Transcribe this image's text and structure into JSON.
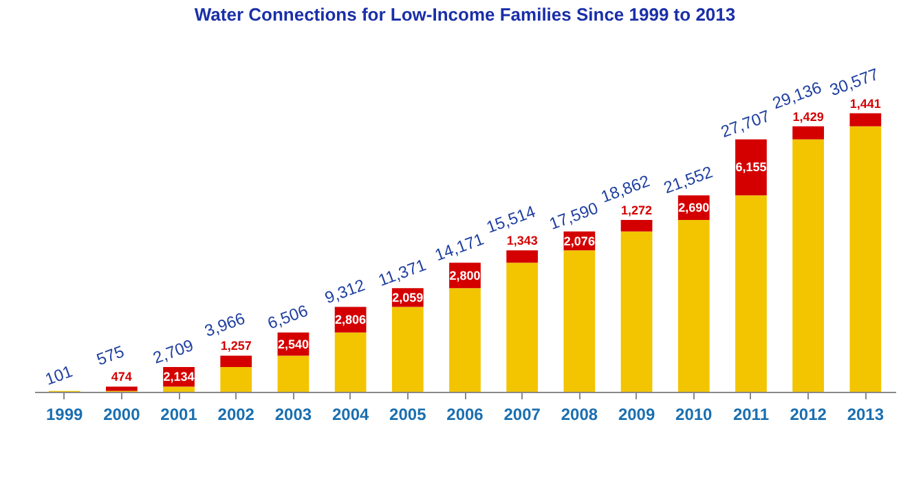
{
  "chart_data": {
    "type": "bar",
    "title": "Water Connections for Low-Income Families Since 1999 to 2013",
    "categories": [
      "1999",
      "2000",
      "2001",
      "2002",
      "2003",
      "2004",
      "2005",
      "2006",
      "2007",
      "2008",
      "2009",
      "2010",
      "2011",
      "2012",
      "2013"
    ],
    "stacked": true,
    "legend": false,
    "grid": false,
    "tick_labels": "x",
    "series": [
      {
        "color": "#f2c500",
        "values": [
          101,
          101,
          575,
          2709,
          3966,
          6506,
          9312,
          11371,
          14171,
          15514,
          17590,
          18862,
          21552,
          27707,
          29136
        ]
      },
      {
        "color": "#d40000",
        "values": [
          null,
          474,
          2134,
          1257,
          2540,
          2806,
          2059,
          2800,
          1343,
          2076,
          1272,
          2690,
          6155,
          1429,
          1441
        ],
        "value_labels": [
          null,
          "474",
          "2,134",
          "1,257",
          "2,540",
          "2,806",
          "2,059",
          "2,800",
          "1,343",
          "2,076",
          "1,272",
          "2,690",
          "6,155",
          "1,429",
          "1,441"
        ]
      }
    ],
    "totals": [
      "101",
      "575",
      "2,709",
      "3,966",
      "6,506",
      "9,312",
      "11,371",
      "14,171",
      "15,514",
      "17,590",
      "18,862",
      "21,552",
      "27,707",
      "29,136",
      "30,577"
    ]
  }
}
